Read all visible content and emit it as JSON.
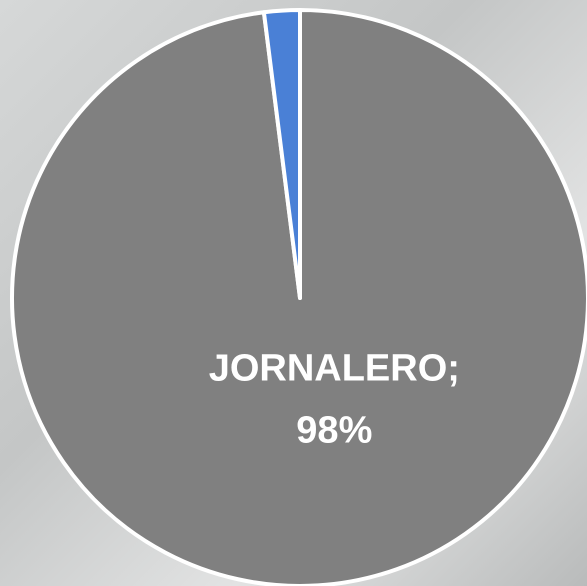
{
  "chart_data": {
    "type": "pie",
    "categories": [
      "JORNALERO;",
      null
    ],
    "values": [
      98,
      2
    ],
    "value_labels": [
      "98%",
      null
    ],
    "colors": [
      "#808080",
      "#4a80d6"
    ]
  }
}
